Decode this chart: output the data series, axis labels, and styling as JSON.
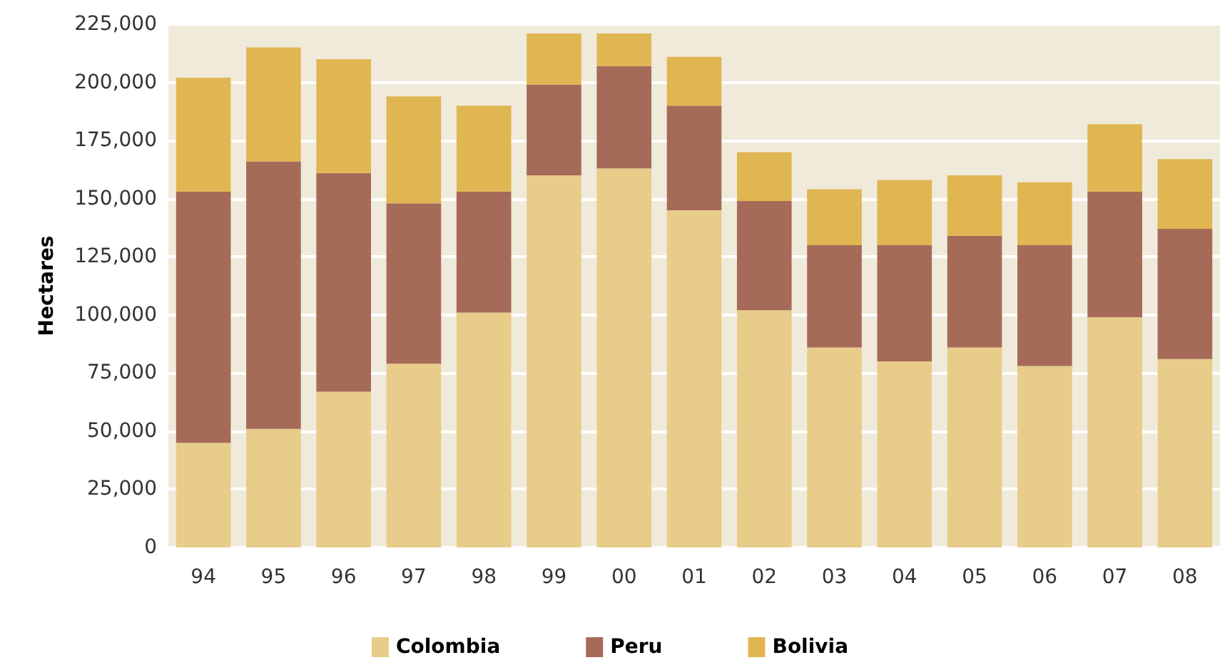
{
  "chart_data": {
    "type": "bar",
    "ylabel": "Hectares",
    "stacked": true,
    "categories": [
      "94",
      "95",
      "96",
      "97",
      "98",
      "99",
      "00",
      "01",
      "02",
      "03",
      "04",
      "05",
      "06",
      "07",
      "08"
    ],
    "series": [
      {
        "name": "Colombia",
        "color": "#e8cc8a",
        "values": [
          45000,
          51000,
          67000,
          79000,
          101000,
          160000,
          163000,
          145000,
          102000,
          86000,
          80000,
          86000,
          78000,
          99000,
          81000
        ]
      },
      {
        "name": "Peru",
        "color": "#a66b58",
        "values": [
          108000,
          115000,
          94000,
          69000,
          52000,
          39000,
          44000,
          45000,
          47000,
          44000,
          50000,
          48000,
          52000,
          54000,
          56000
        ]
      },
      {
        "name": "Bolivia",
        "color": "#e0b652",
        "values": [
          49000,
          49000,
          49000,
          46000,
          37000,
          22000,
          14000,
          21000,
          21000,
          24000,
          28000,
          26000,
          27000,
          29000,
          30000
        ]
      }
    ],
    "ylim": [
      0,
      225000
    ],
    "yticks": [
      0,
      {
        "value": 25000,
        "label": "25,000"
      },
      {
        "value": 50000,
        "label": "50,000"
      },
      {
        "value": 75000,
        "label": "75,000"
      },
      {
        "value": 100000,
        "label": "100,000"
      },
      {
        "value": 125000,
        "label": "125,000"
      },
      {
        "value": 150000,
        "label": "150,000"
      },
      {
        "value": 175000,
        "label": "175,000"
      },
      {
        "value": 200000,
        "label": "200,000"
      },
      {
        "value": 225000,
        "label": "225,000"
      }
    ],
    "grid": "y",
    "legend": "bottom"
  }
}
